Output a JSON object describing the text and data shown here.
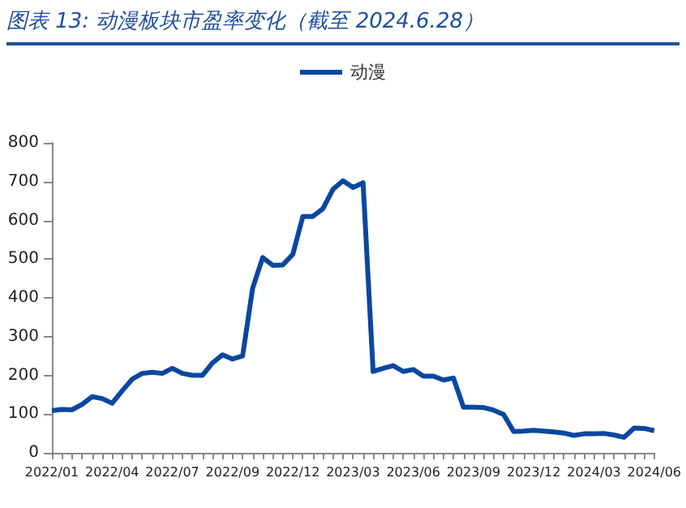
{
  "chart_data": {
    "type": "line",
    "title": "图表 13:  动漫板块市盈率变化（截至 2024.6.28）",
    "categories": [
      "2022/01",
      null,
      null,
      null,
      null,
      null,
      "2022/04",
      null,
      null,
      null,
      null,
      null,
      "2022/07",
      null,
      null,
      null,
      null,
      null,
      "2022/09",
      null,
      null,
      null,
      null,
      null,
      "2022/12",
      null,
      null,
      null,
      null,
      null,
      "2023/03",
      null,
      null,
      null,
      null,
      null,
      "2023/06",
      null,
      null,
      null,
      null,
      null,
      "2023/09",
      null,
      null,
      null,
      null,
      null,
      "2023/12",
      null,
      null,
      null,
      null,
      null,
      "2024/03",
      null,
      null,
      null,
      null,
      null,
      "2024/06"
    ],
    "series": [
      {
        "name": "动漫",
        "color": "#0a47a0",
        "values": [
          109,
          112,
          111,
          125,
          145,
          140,
          128,
          160,
          190,
          205,
          208,
          205,
          218,
          205,
          200,
          200,
          232,
          253,
          242,
          250,
          425,
          504,
          484,
          485,
          512,
          610,
          610,
          630,
          680,
          702,
          685,
          697,
          210,
          218,
          225,
          210,
          215,
          198,
          198,
          188,
          193,
          118,
          118,
          117,
          110,
          99,
          55,
          56,
          58,
          56,
          54,
          51,
          45,
          49,
          49,
          50,
          46,
          40,
          64,
          63,
          57
        ]
      }
    ],
    "ylim": [
      0,
      800
    ],
    "yticks": [
      0,
      100,
      200,
      300,
      400,
      500,
      600,
      700,
      800
    ],
    "grid": false,
    "legend": "top",
    "marker": "none",
    "line_style": "solid"
  }
}
